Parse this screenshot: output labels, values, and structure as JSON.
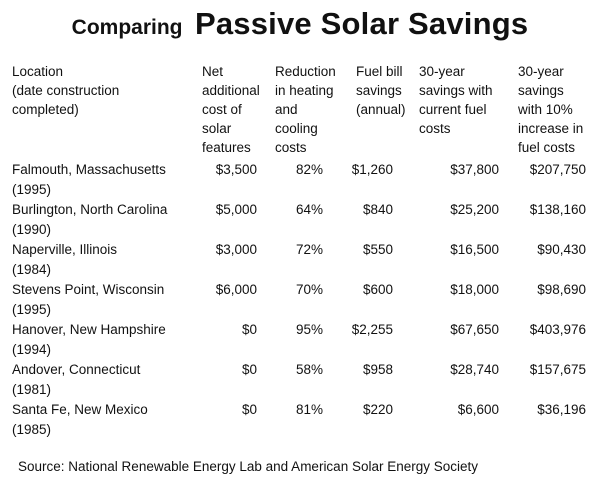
{
  "title": {
    "prefix": "Comparing",
    "main": "Passive Solar Savings"
  },
  "headers": [
    "Location\n(date construction\ncompleted)",
    "Net\nadditional\ncost of\nsolar\nfeatures",
    "Reduction\nin heating\nand\ncooling\ncosts",
    "Fuel bill\nsavings\n(annual)",
    "30-year\nsavings with\ncurrent fuel\ncosts",
    "30-year\nsavings\nwith 10%\nincrease in\nfuel costs"
  ],
  "rows": [
    {
      "location": "Falmouth, Massachusetts",
      "year": "(1995)",
      "cost": "$3,500",
      "reduction": "82%",
      "annual": "$1,260",
      "current": "$37,800",
      "increase": "$207,750"
    },
    {
      "location": "Burlington, North Carolina",
      "year": "(1990)",
      "cost": "$5,000",
      "reduction": "64%",
      "annual": "$840",
      "current": "$25,200",
      "increase": "$138,160"
    },
    {
      "location": "Naperville, Illinois",
      "year": "(1984)",
      "cost": "$3,000",
      "reduction": "72%",
      "annual": "$550",
      "current": "$16,500",
      "increase": "$90,430"
    },
    {
      "location": "Stevens Point, Wisconsin",
      "year": "(1995)",
      "cost": "$6,000",
      "reduction": "70%",
      "annual": "$600",
      "current": "$18,000",
      "increase": "$98,690"
    },
    {
      "location": "Hanover, New Hampshire",
      "year": "(1994)",
      "cost": "$0",
      "reduction": "95%",
      "annual": "$2,255",
      "current": "$67,650",
      "increase": "$403,976"
    },
    {
      "location": "Andover, Connecticut",
      "year": "(1981)",
      "cost": "$0",
      "reduction": "58%",
      "annual": "$958",
      "current": "$28,740",
      "increase": "$157,675"
    },
    {
      "location": "Santa Fe, New Mexico",
      "year": "(1985)",
      "cost": "$0",
      "reduction": "81%",
      "annual": "$220",
      "current": "$6,600",
      "increase": "$36,196"
    }
  ],
  "source": "Source: National Renewable Energy Lab and American Solar Energy Society"
}
